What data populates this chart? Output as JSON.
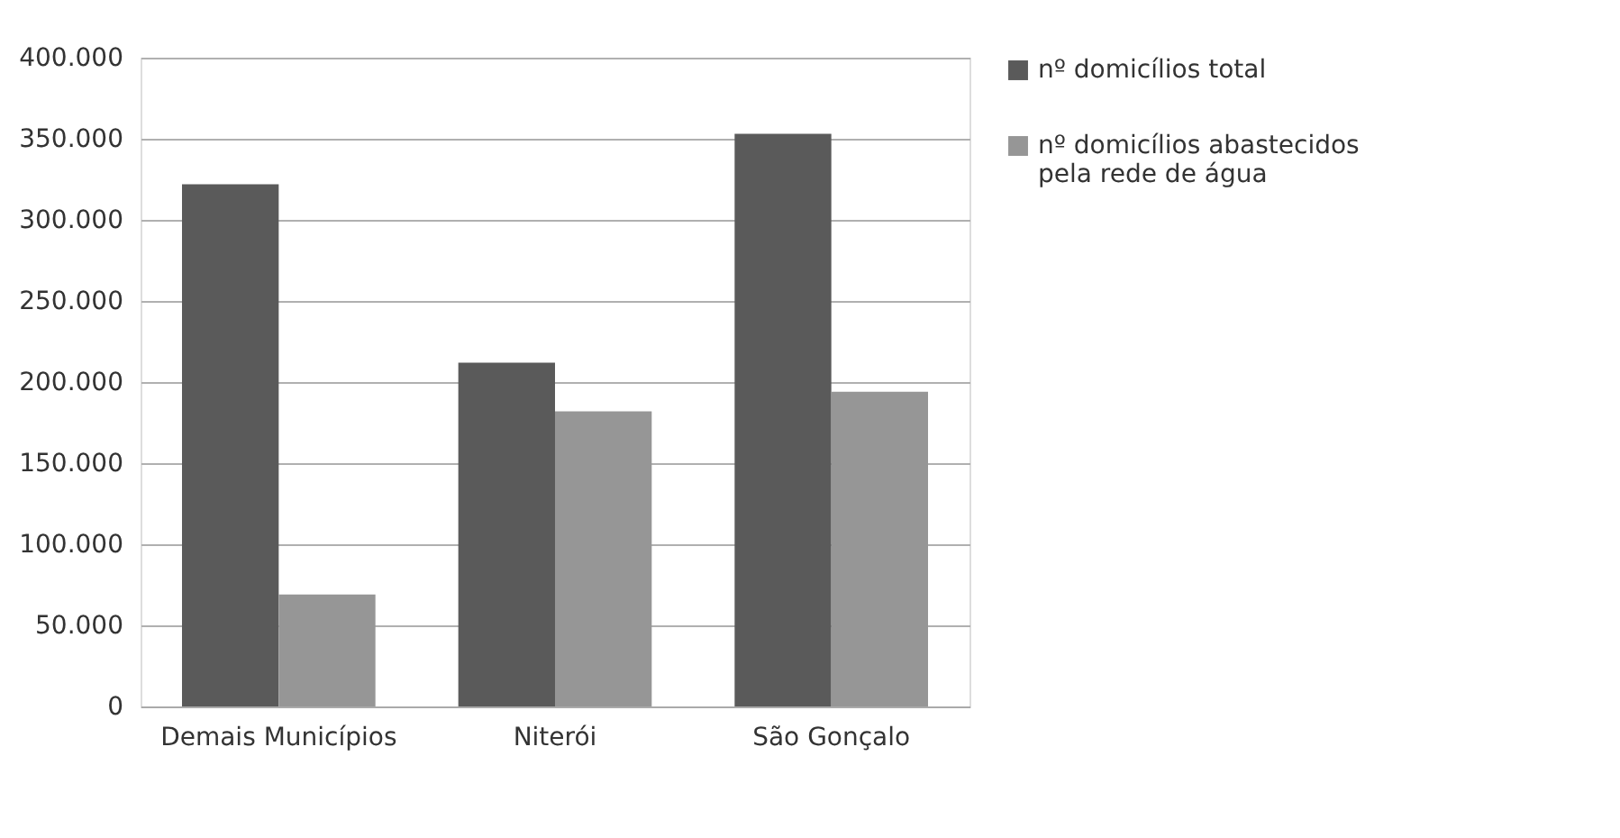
{
  "chart_data": {
    "type": "bar",
    "categories": [
      "Demais Municípios",
      "Niterói",
      "São Gonçalo"
    ],
    "series": [
      {
        "name": "nº domicílios total",
        "color": "#5a5a5a",
        "values": [
          322000,
          212000,
          353000
        ]
      },
      {
        "name": "nº domicílios abastecidos pela rede de água",
        "color": "#969696",
        "values": [
          69000,
          182000,
          194000
        ]
      }
    ],
    "ylim": [
      0,
      400000
    ],
    "yticks": [
      {
        "value": 0,
        "label": "0"
      },
      {
        "value": 50000,
        "label": "50.000"
      },
      {
        "value": 100000,
        "label": "100.000"
      },
      {
        "value": 150000,
        "label": "150.000"
      },
      {
        "value": 200000,
        "label": "200.000"
      },
      {
        "value": 250000,
        "label": "250.000"
      },
      {
        "value": 300000,
        "label": "300.000"
      },
      {
        "value": 350000,
        "label": "350.000"
      },
      {
        "value": 400000,
        "label": "400.000"
      }
    ],
    "grid": "y",
    "legend": "right"
  }
}
